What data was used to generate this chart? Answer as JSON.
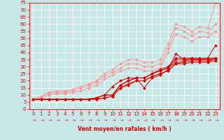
{
  "bg_color": "#c8e8e8",
  "grid_color": "#aad4d4",
  "xlabel": "Vent moyen/en rafales ( km/h )",
  "xlim": [
    -0.5,
    23.5
  ],
  "ylim": [
    0,
    75
  ],
  "yticks": [
    0,
    5,
    10,
    15,
    20,
    25,
    30,
    35,
    40,
    45,
    50,
    55,
    60,
    65,
    70,
    75
  ],
  "xticks": [
    0,
    1,
    2,
    3,
    4,
    5,
    6,
    7,
    8,
    9,
    10,
    11,
    12,
    13,
    14,
    15,
    16,
    17,
    18,
    19,
    20,
    21,
    22,
    23
  ],
  "series_light": [
    [
      7,
      9,
      12,
      13,
      13,
      14,
      16,
      18,
      20,
      25,
      28,
      32,
      35,
      35,
      33,
      33,
      35,
      46,
      60,
      58,
      55,
      58,
      57,
      75
    ],
    [
      7,
      9,
      11,
      12,
      12,
      13,
      15,
      17,
      19,
      23,
      26,
      29,
      32,
      32,
      30,
      30,
      32,
      43,
      57,
      55,
      52,
      55,
      54,
      60
    ],
    [
      7,
      8,
      10,
      11,
      11,
      12,
      13,
      15,
      17,
      21,
      24,
      27,
      29,
      29,
      27,
      27,
      29,
      40,
      53,
      51,
      48,
      51,
      51,
      55
    ]
  ],
  "series_dark": [
    [
      7,
      7,
      7,
      7,
      7,
      7,
      7,
      7,
      8,
      10,
      16,
      20,
      22,
      22,
      15,
      22,
      24,
      28,
      39,
      35,
      36,
      35,
      36,
      45
    ],
    [
      7,
      7,
      7,
      7,
      7,
      7,
      7,
      7,
      8,
      10,
      10,
      17,
      20,
      22,
      22,
      25,
      28,
      30,
      36,
      36,
      36,
      36,
      36,
      36
    ],
    [
      7,
      7,
      7,
      7,
      7,
      7,
      7,
      7,
      8,
      10,
      10,
      17,
      20,
      22,
      22,
      25,
      27,
      29,
      35,
      35,
      35,
      35,
      35,
      35
    ],
    [
      7,
      7,
      7,
      7,
      7,
      7,
      7,
      7,
      8,
      10,
      10,
      17,
      20,
      22,
      22,
      25,
      27,
      29,
      33,
      34,
      35,
      35,
      35,
      36
    ],
    [
      7,
      7,
      7,
      7,
      7,
      7,
      7,
      7,
      7,
      8,
      9,
      15,
      18,
      20,
      20,
      23,
      25,
      27,
      32,
      33,
      34,
      34,
      34,
      35
    ],
    [
      7,
      7,
      7,
      7,
      7,
      7,
      7,
      7,
      7,
      8,
      9,
      15,
      17,
      20,
      20,
      23,
      25,
      27,
      32,
      32,
      33,
      33,
      33,
      34
    ]
  ],
  "color_dark": "#dd0000",
  "color_light": "#ff9999",
  "markersize": 2.0,
  "linewidth": 0.7,
  "tick_fontsize": 5.0,
  "xlabel_fontsize": 5.5
}
